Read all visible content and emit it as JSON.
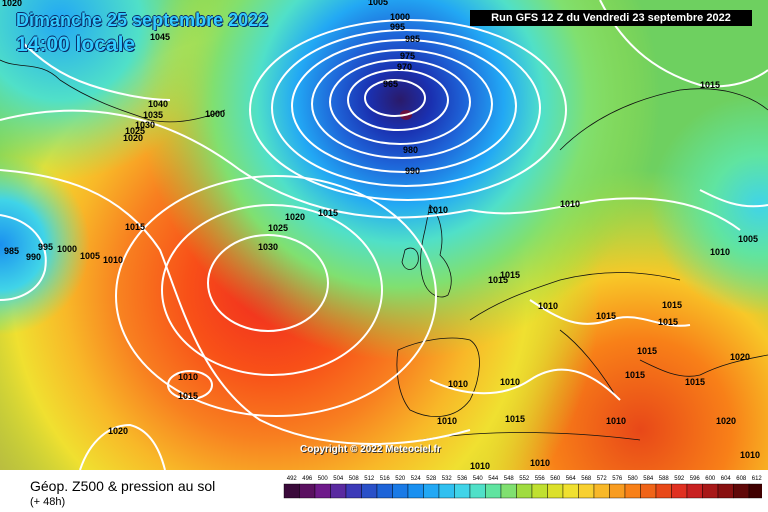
{
  "header": {
    "date_title": "Dimanche 25 septembre 2022",
    "time_title": "14:00 locale",
    "run_info": "Run GFS 12 Z du Vendredi 23 septembre 2022"
  },
  "footer": {
    "legend_title": "Géop. Z500 & pression au sol",
    "legend_subtitle": "(+ 48h)",
    "copyright": "Copyright © 2022 Meteociel.fr"
  },
  "legend_scale": {
    "values": [
      "492",
      "496",
      "500",
      "504",
      "508",
      "512",
      "516",
      "520",
      "524",
      "528",
      "532",
      "536",
      "540",
      "544",
      "548",
      "552",
      "556",
      "560",
      "564",
      "568",
      "572",
      "576",
      "580",
      "584",
      "588",
      "592",
      "596",
      "600",
      "604",
      "608",
      "612"
    ],
    "colors": [
      "#3a0a3a",
      "#5a1060",
      "#6e1a8a",
      "#5a2aa0",
      "#3c3ab8",
      "#2a50c8",
      "#1e64d8",
      "#1a7ae6",
      "#1a90f0",
      "#22a8f4",
      "#30c0f0",
      "#40d4e8",
      "#50e0c8",
      "#60e4a0",
      "#80e070",
      "#a0dc40",
      "#c0e030",
      "#dce02a",
      "#f0e030",
      "#f8d030",
      "#f8b828",
      "#f89c20",
      "#f88018",
      "#f06418",
      "#e84818",
      "#e03020",
      "#c82020",
      "#a81818",
      "#881010",
      "#600808",
      "#400000"
    ]
  },
  "colors": {
    "map_background": "#4fc86a",
    "title_text": "#33ccff",
    "isobar": "#ffffff"
  },
  "isobar_labels": [
    {
      "text": "1045"
    },
    {
      "text": "1020"
    },
    {
      "text": "1040"
    },
    {
      "text": "1035"
    },
    {
      "text": "1030"
    },
    {
      "text": "1025"
    },
    {
      "text": "1020"
    },
    {
      "text": "1000"
    },
    {
      "text": "1005"
    },
    {
      "text": "1000"
    },
    {
      "text": "995"
    },
    {
      "text": "985"
    },
    {
      "text": "975"
    },
    {
      "text": "970"
    },
    {
      "text": "965"
    },
    {
      "text": "980"
    },
    {
      "text": "990"
    },
    {
      "text": "1015"
    },
    {
      "text": "1020"
    },
    {
      "text": "1015"
    },
    {
      "text": "1025"
    },
    {
      "text": "1030"
    },
    {
      "text": "1010"
    },
    {
      "text": "1010"
    },
    {
      "text": "1015"
    },
    {
      "text": "1005"
    },
    {
      "text": "1010"
    },
    {
      "text": "995"
    },
    {
      "text": "1000"
    },
    {
      "text": "1005"
    },
    {
      "text": "1010"
    },
    {
      "text": "985"
    },
    {
      "text": "990"
    },
    {
      "text": "1010"
    },
    {
      "text": "1015"
    },
    {
      "text": "1020"
    },
    {
      "text": "1015"
    },
    {
      "text": "1015"
    },
    {
      "text": "1010"
    },
    {
      "text": "1015"
    },
    {
      "text": "1015"
    },
    {
      "text": "1015"
    },
    {
      "text": "1015"
    },
    {
      "text": "1010"
    },
    {
      "text": "1010"
    },
    {
      "text": "1020"
    },
    {
      "text": "1015"
    },
    {
      "text": "1015"
    },
    {
      "text": "1010"
    },
    {
      "text": "1010"
    },
    {
      "text": "1015"
    },
    {
      "text": "1010"
    },
    {
      "text": "1020"
    },
    {
      "text": "1010"
    },
    {
      "text": "1010"
    }
  ]
}
